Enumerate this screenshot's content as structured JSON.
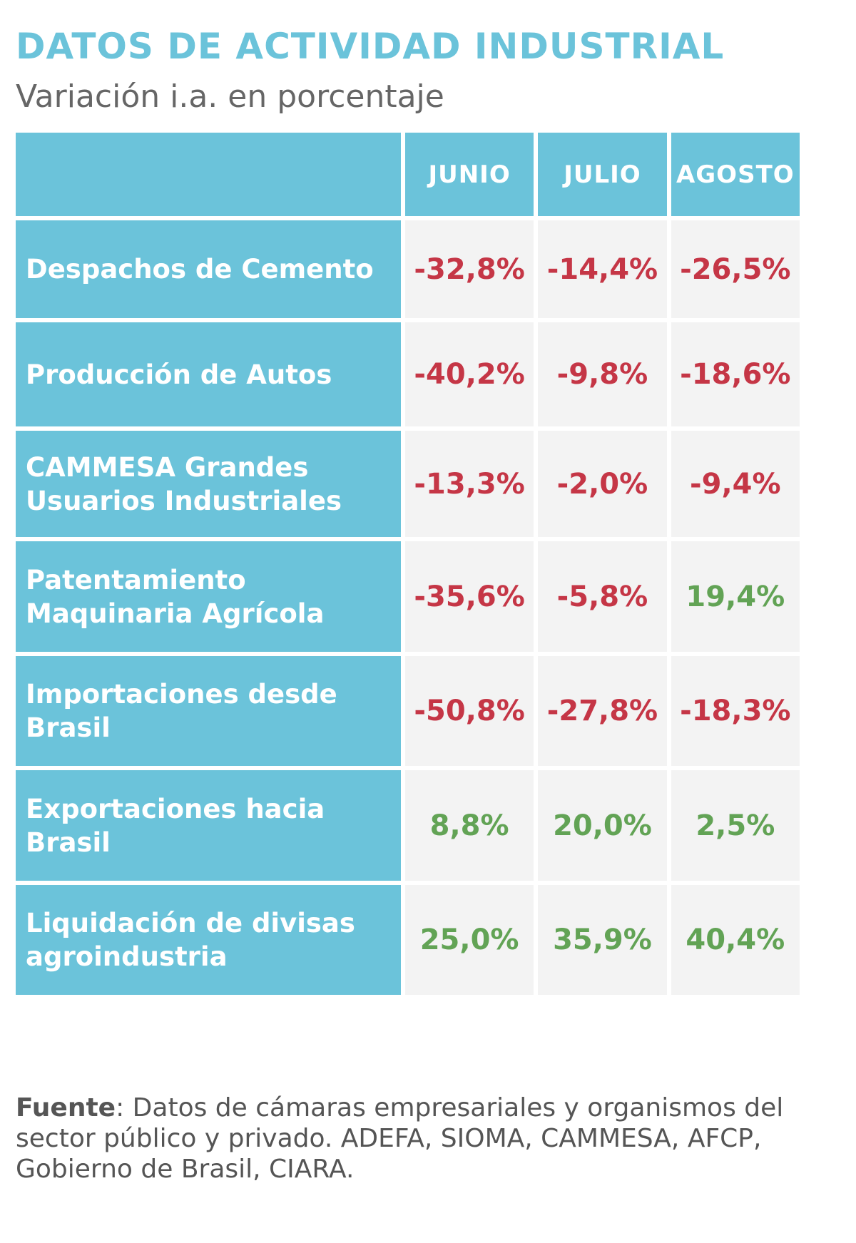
{
  "chart_data": {
    "type": "table",
    "title": "DATOS DE ACTIVIDAD INDUSTRIAL",
    "subtitle": "Variación i.a. en porcentaje",
    "columns": [
      "JUNIO",
      "JULIO",
      "AGOSTO"
    ],
    "rows": [
      {
        "label": "Despachos de Cemento",
        "values": [
          "-32,8%",
          "-14,4%",
          "-26,5%"
        ],
        "numeric": [
          -32.8,
          -14.4,
          -26.5
        ]
      },
      {
        "label": "Producción de Autos",
        "values": [
          "-40,2%",
          "-9,8%",
          "-18,6%"
        ],
        "numeric": [
          -40.2,
          -9.8,
          -18.6
        ]
      },
      {
        "label": "CAMMESA Grandes Usuarios Industriales",
        "values": [
          "-13,3%",
          "-2,0%",
          "-9,4%"
        ],
        "numeric": [
          -13.3,
          -2.0,
          -9.4
        ]
      },
      {
        "label": "Patentamiento Maquinaria Agrícola",
        "values": [
          "-35,6%",
          "-5,8%",
          "19,4%"
        ],
        "numeric": [
          -35.6,
          -5.8,
          19.4
        ]
      },
      {
        "label": "Importaciones desde Brasil",
        "values": [
          "-50,8%",
          "-27,8%",
          "-18,3%"
        ],
        "numeric": [
          -50.8,
          -27.8,
          -18.3
        ]
      },
      {
        "label": "Exportaciones hacia Brasil",
        "values": [
          "8,8%",
          "20,0%",
          "2,5%"
        ],
        "numeric": [
          8.8,
          20.0,
          2.5
        ]
      },
      {
        "label": "Liquidación de divisas agroindustria",
        "values": [
          "25,0%",
          "35,9%",
          "40,4%"
        ],
        "numeric": [
          25.0,
          35.9,
          40.4
        ]
      }
    ],
    "source_label": "Fuente",
    "source_text": ": Datos de cámaras empresariales y organismos del sector público y privado. ADEFA, SIOMA, CAMMESA, AFCP, Gobierno de Brasil, CIARA.",
    "colors": {
      "header": "#6bc3da",
      "title": "#6bc3da",
      "negative": "#c53646",
      "positive": "#62a355",
      "cell_bg": "#f3f3f3"
    }
  }
}
